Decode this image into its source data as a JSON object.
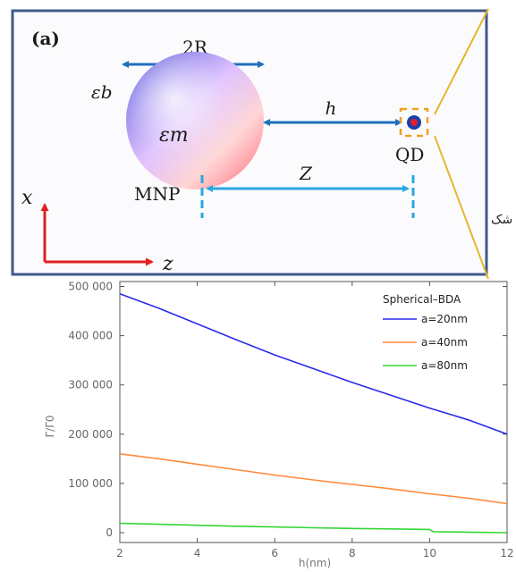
{
  "schematic": {
    "panel_label": "(a)",
    "diameter_label": "2R",
    "eps_b": "εb",
    "eps_m": "εm",
    "h_label": "h",
    "z_label": "Z",
    "qd_label": "QD",
    "mnp_label": "MNP",
    "axis_x": "x",
    "axis_z": "z",
    "side_text": "شک"
  },
  "chart_data": {
    "type": "line",
    "xlabel": "h(nm)",
    "ylabel": "Γ/Γ0",
    "xlim": [
      2,
      12
    ],
    "ylim": [
      -20000,
      510000
    ],
    "x_ticks": [
      "2",
      "4",
      "6",
      "8",
      "10",
      "12"
    ],
    "y_ticks": [
      {
        "value": 0,
        "label": "0"
      },
      {
        "value": 100000,
        "label": "100 000"
      },
      {
        "value": 200000,
        "label": "200 000"
      },
      {
        "value": 300000,
        "label": "300 000"
      },
      {
        "value": 400000,
        "label": "400 000"
      },
      {
        "value": 500000,
        "label": "500 000"
      }
    ],
    "legend_title": "Spherical–BDA",
    "legend_position": "top-right",
    "grid": false,
    "series": [
      {
        "name": "a=20nm",
        "color": "#2a2ae8",
        "x": [
          2,
          3,
          4,
          5,
          6,
          7,
          8,
          9,
          10,
          11,
          12
        ],
        "y": [
          485000,
          456000,
          424000,
          392000,
          361000,
          333000,
          305000,
          279000,
          253000,
          229000,
          200000
        ]
      },
      {
        "name": "a=40nm",
        "color": "#ff8a3d",
        "x": [
          2,
          3,
          4,
          5,
          6,
          7,
          8,
          9,
          10,
          11,
          12
        ],
        "y": [
          160000,
          150000,
          139000,
          128000,
          117000,
          107000,
          98000,
          89000,
          79000,
          70000,
          59000
        ]
      },
      {
        "name": "a=80nm",
        "color": "#33d633",
        "x": [
          2,
          3,
          4,
          5,
          6,
          7,
          8,
          9,
          10,
          10.1,
          11,
          12
        ],
        "y": [
          19000,
          17000,
          15000,
          13000,
          11500,
          10000,
          8500,
          7500,
          6500,
          2000,
          1000,
          0
        ]
      }
    ]
  }
}
